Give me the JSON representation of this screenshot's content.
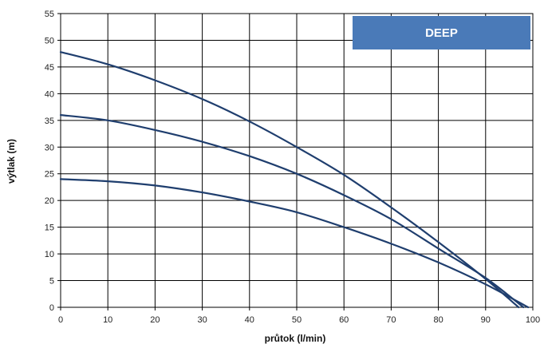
{
  "chart_data": {
    "type": "line",
    "title": "",
    "badge": "DEEP",
    "xlabel": "průtok (l/min)",
    "ylabel": "výtlak (m)",
    "xlim": [
      0,
      100
    ],
    "ylim": [
      0,
      55
    ],
    "x_ticks": [
      "0",
      "10",
      "20",
      "30",
      "40",
      "50",
      "60",
      "70",
      "80",
      "90",
      "100"
    ],
    "y_ticks": [
      "0",
      "5",
      "10",
      "15",
      "20",
      "25",
      "30",
      "35",
      "40",
      "45",
      "50",
      "55"
    ],
    "grid": true,
    "line_color": "#1f3e6e",
    "badge_color": "#4a7ab8",
    "series": [
      {
        "x": [
          0,
          10,
          20,
          30,
          40,
          50,
          60,
          70,
          80,
          90,
          97
        ],
        "y": [
          47.8,
          45.5,
          42.5,
          39,
          34.8,
          30,
          24.8,
          18.7,
          12.2,
          5.3,
          0
        ]
      },
      {
        "x": [
          0,
          10,
          20,
          30,
          40,
          50,
          60,
          70,
          80,
          90,
          98
        ],
        "y": [
          36,
          35,
          33.2,
          31,
          28.3,
          25,
          21,
          16.5,
          11,
          5.5,
          0
        ]
      },
      {
        "x": [
          0,
          10,
          20,
          30,
          40,
          50,
          60,
          70,
          80,
          90,
          99
        ],
        "y": [
          24,
          23.6,
          22.8,
          21.5,
          19.8,
          17.8,
          15,
          11.9,
          8.4,
          4.3,
          0
        ]
      }
    ]
  }
}
